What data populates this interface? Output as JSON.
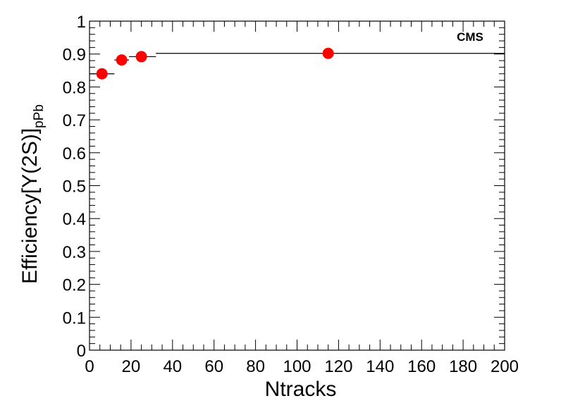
{
  "chart_data": {
    "type": "scatter",
    "title": "",
    "xlabel": "Ntracks",
    "ylabel": {
      "main": "Efficiency[",
      "symbol": "Υ",
      "state": "(2S)]",
      "subscript": "pPb"
    },
    "annotation": "CMS",
    "xlim": [
      0,
      200
    ],
    "ylim": [
      0,
      1
    ],
    "x_ticks": [
      "0",
      "20",
      "40",
      "60",
      "80",
      "100",
      "120",
      "140",
      "160",
      "180",
      "200"
    ],
    "y_ticks": [
      "0",
      "0.1",
      "0.2",
      "0.3",
      "0.4",
      "0.5",
      "0.6",
      "0.7",
      "0.8",
      "0.9",
      "1"
    ],
    "grid": false,
    "legend": "none",
    "colors": {
      "marker": "#ff0000",
      "axes": "#000000"
    },
    "points": [
      {
        "x": 6,
        "y": 0.84,
        "xlo": 0,
        "xhi": 12
      },
      {
        "x": 15.5,
        "y": 0.882,
        "xlo": 12,
        "xhi": 19
      },
      {
        "x": 25,
        "y": 0.892,
        "xlo": 19,
        "xhi": 32
      },
      {
        "x": 115,
        "y": 0.902,
        "xlo": 32,
        "xhi": 200
      }
    ]
  }
}
